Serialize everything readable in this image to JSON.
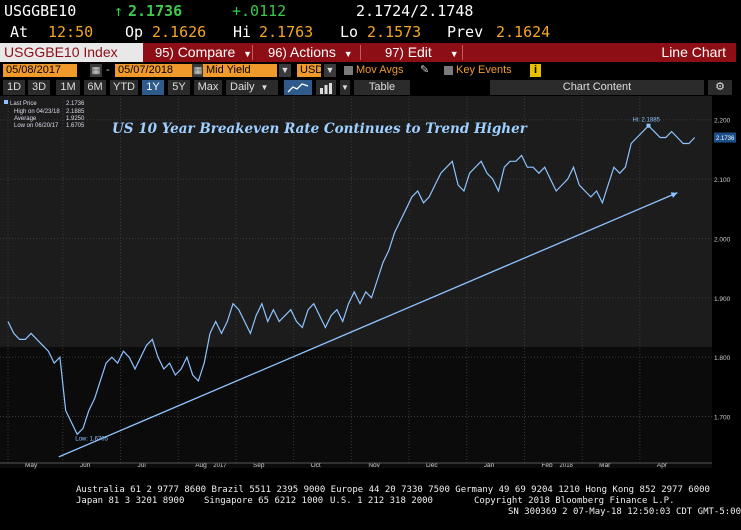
{
  "quote": {
    "ticker": "USGGBE10",
    "arrow": "↑",
    "last": "2.1736",
    "change": "+.0112",
    "bid_ask": "2.1724/2.1748",
    "at_label": "At",
    "time": "12:50",
    "op_label": "Op",
    "open": "2.1626",
    "hi_label": "Hi",
    "high": "2.1763",
    "lo_label": "Lo",
    "low": "2.1573",
    "prev_label": "Prev",
    "prev": "2.1624"
  },
  "toolbar": {
    "title": "USGGBE10 Index",
    "compare_num": "95)",
    "compare": "Compare",
    "actions_num": "96)",
    "actions": "Actions",
    "edit_num": "97)",
    "edit": "Edit",
    "chart_type": "Line Chart"
  },
  "inputs": {
    "start_date": "05/08/2017",
    "end_date": "05/07/2018",
    "field": "Mid Yield",
    "currency": "USD",
    "mov_avgs": "Mov Avgs",
    "key_events": "Key Events",
    "key_events_icon": "i",
    "dash": "-"
  },
  "range_buttons": {
    "items": [
      "1D",
      "3D",
      "1M",
      "6M",
      "YTD",
      "1Y",
      "5Y",
      "Max"
    ],
    "selected": "1Y",
    "period": "Daily",
    "table": "Table",
    "chart_content": "Chart Content"
  },
  "colors": {
    "accent": "#8e0e16",
    "line": "#8fc3ff",
    "amber": "#f5a623",
    "green": "#3ec94a"
  },
  "chart_data": {
    "type": "line",
    "title": "US 10 Year Breakeven Rate Continues to Trend Higher",
    "legend": {
      "last_price_label": "Last Price",
      "last_price": "2.1736",
      "high_label": "High on 04/23/18",
      "high": "2.1885",
      "average_label": "Average",
      "average": "1.9250",
      "low_label": "Low on 06/20/17",
      "low": "1.6705"
    },
    "hi_annotation": "Hi: 2.1885",
    "low_annotation": "Low: 1.6705",
    "last_tag": "2.1736",
    "ylim": [
      1.62,
      2.24
    ],
    "xlim": [
      0,
      12.2
    ],
    "y_ticks": [
      "2.200",
      "2.100",
      "2.000",
      "1.900",
      "1.800",
      "1.700"
    ],
    "y_tick_values": [
      2.2,
      2.1,
      2.0,
      1.9,
      1.8,
      1.7
    ],
    "x_ticks": [
      "May",
      "Jun",
      "Jul",
      "Aug",
      "Sep",
      "Oct",
      "Nov",
      "Dec",
      "Jan",
      "Feb",
      "Mar",
      "Apr"
    ],
    "x_tick_values": [
      0.0,
      0.95,
      1.95,
      2.95,
      3.95,
      4.95,
      5.95,
      6.95,
      7.95,
      8.95,
      9.95,
      10.95
    ],
    "year_labels": [
      "2017",
      "2018"
    ],
    "year_label_values": [
      3.5,
      9.5
    ],
    "x": [
      0.0,
      0.1,
      0.2,
      0.3,
      0.4,
      0.5,
      0.6,
      0.7,
      0.8,
      0.9,
      1.0,
      1.1,
      1.2,
      1.3,
      1.4,
      1.5,
      1.6,
      1.7,
      1.8,
      1.9,
      2.0,
      2.1,
      2.2,
      2.3,
      2.4,
      2.5,
      2.6,
      2.7,
      2.8,
      2.9,
      3.0,
      3.1,
      3.2,
      3.3,
      3.4,
      3.5,
      3.6,
      3.7,
      3.8,
      3.9,
      4.0,
      4.1,
      4.2,
      4.3,
      4.4,
      4.5,
      4.6,
      4.7,
      4.8,
      4.9,
      5.0,
      5.1,
      5.2,
      5.3,
      5.4,
      5.5,
      5.6,
      5.7,
      5.8,
      5.9,
      6.0,
      6.1,
      6.2,
      6.3,
      6.4,
      6.5,
      6.6,
      6.7,
      6.8,
      6.9,
      7.0,
      7.1,
      7.2,
      7.3,
      7.4,
      7.5,
      7.6,
      7.7,
      7.8,
      7.9,
      8.0,
      8.1,
      8.2,
      8.3,
      8.4,
      8.5,
      8.6,
      8.7,
      8.8,
      8.9,
      9.0,
      9.1,
      9.2,
      9.3,
      9.4,
      9.5,
      9.6,
      9.7,
      9.8,
      9.9,
      10.0,
      10.1,
      10.2,
      10.3,
      10.4,
      10.5,
      10.6,
      10.7,
      10.8,
      10.9,
      11.0,
      11.1,
      11.2,
      11.3,
      11.4,
      11.5,
      11.6,
      11.7,
      11.8,
      11.9
    ],
    "values": [
      1.86,
      1.84,
      1.83,
      1.83,
      1.84,
      1.83,
      1.82,
      1.81,
      1.79,
      1.8,
      1.71,
      1.69,
      1.67,
      1.68,
      1.71,
      1.73,
      1.76,
      1.79,
      1.8,
      1.79,
      1.81,
      1.8,
      1.78,
      1.8,
      1.82,
      1.83,
      1.8,
      1.78,
      1.79,
      1.77,
      1.78,
      1.8,
      1.77,
      1.76,
      1.79,
      1.84,
      1.86,
      1.84,
      1.86,
      1.89,
      1.88,
      1.86,
      1.84,
      1.87,
      1.89,
      1.86,
      1.88,
      1.86,
      1.87,
      1.88,
      1.86,
      1.85,
      1.88,
      1.89,
      1.87,
      1.85,
      1.87,
      1.88,
      1.86,
      1.89,
      1.91,
      1.89,
      1.91,
      1.9,
      1.93,
      1.96,
      1.98,
      2.01,
      2.03,
      2.05,
      2.07,
      2.08,
      2.06,
      2.07,
      2.09,
      2.11,
      2.12,
      2.13,
      2.09,
      2.08,
      2.11,
      2.12,
      2.13,
      2.11,
      2.1,
      2.08,
      2.12,
      2.13,
      2.13,
      2.14,
      2.12,
      2.12,
      2.11,
      2.12,
      2.1,
      2.08,
      2.09,
      2.1,
      2.12,
      2.09,
      2.08,
      2.07,
      2.08,
      2.06,
      2.09,
      2.12,
      2.11,
      2.12,
      2.16,
      2.17,
      2.18,
      2.19,
      2.18,
      2.17,
      2.17,
      2.18,
      2.17,
      2.16,
      2.16,
      2.17
    ],
    "trend_line": {
      "from": [
        0.88,
        1.632
      ],
      "to": [
        11.6,
        2.077
      ]
    }
  },
  "footer": {
    "line1": "Australia 61 2 9777 8600 Brazil 5511 2395 9000 Europe 44 20 7330 7500 Germany 49 69 9204 1210 Hong Kong 852 2977 6000",
    "line2a": "Japan 81 3 3201 8900",
    "line2b": "Singapore 65 6212 1000",
    "line2c": "U.S. 1 212 318 2000",
    "line2d": "Copyright 2018 Bloomberg Finance L.P.",
    "line3": "SN 300369 2 07-May-18 12:50:03 CDT  GMT-5:00"
  }
}
